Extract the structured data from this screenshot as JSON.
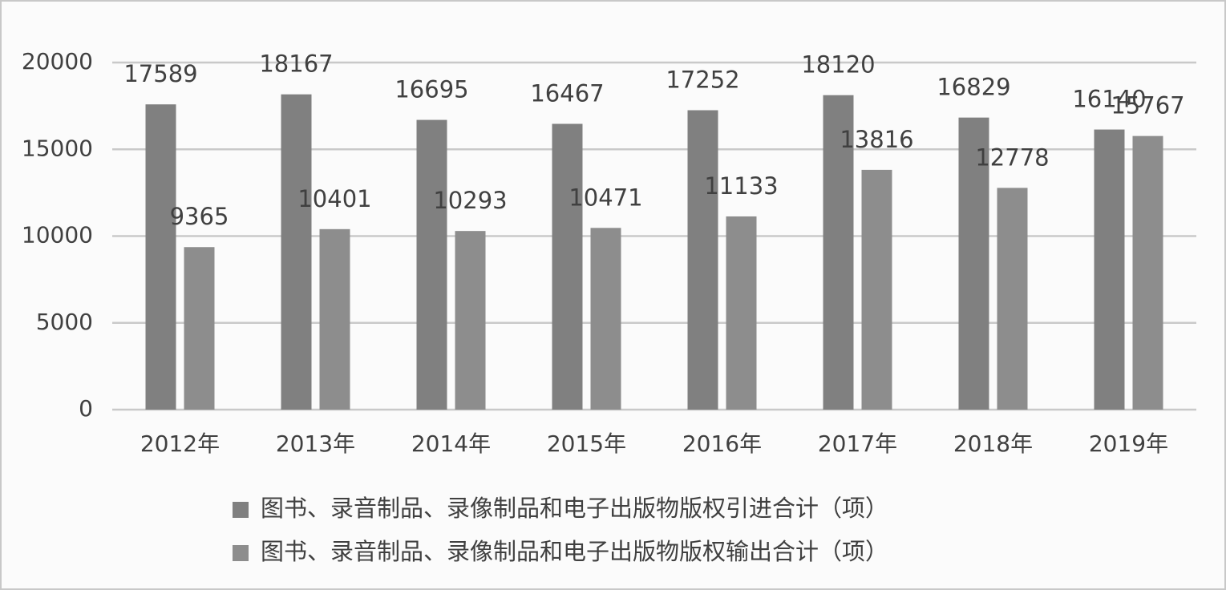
{
  "chart_data": {
    "type": "bar",
    "categories": [
      "2012年",
      "2013年",
      "2014年",
      "2015年",
      "2016年",
      "2017年",
      "2018年",
      "2019年"
    ],
    "series": [
      {
        "name": "图书、录音制品、录像制品和电子出版物版权引进合计（项）",
        "color": "#808080",
        "values": [
          17589,
          18167,
          16695,
          16467,
          17252,
          18120,
          16829,
          16140
        ]
      },
      {
        "name": "图书、录音制品、录像制品和电子出版物版权输出合计（项）",
        "color": "#8d8d8d",
        "values": [
          9365,
          10401,
          10293,
          10471,
          11133,
          13816,
          12778,
          15767
        ]
      }
    ],
    "ylim": [
      0,
      20000
    ],
    "yticks": [
      0,
      5000,
      10000,
      15000,
      20000
    ],
    "grid": true
  }
}
